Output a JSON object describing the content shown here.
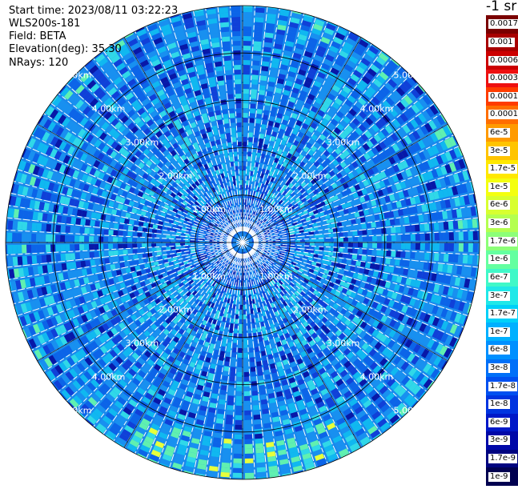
{
  "header": {
    "start_time": "Start time: 2023/08/11 03:22:23",
    "instrument": "WLS200s-181",
    "field": "Field: BETA",
    "elevation": "Elevation(deg): 35.30",
    "nrays": "NRays: 120"
  },
  "colorbar": {
    "unit_label": "-1 sr",
    "labels": [
      "0.0017",
      "0.001",
      "0.0006",
      "0.0003",
      "0.00017",
      "0.0001",
      "6e-5",
      "3e-5",
      "1.7e-5",
      "1e-5",
      "6e-6",
      "3e-6",
      "1.7e-6",
      "1e-6",
      "6e-7",
      "3e-7",
      "1.7e-7",
      "1e-7",
      "6e-8",
      "3e-8",
      "1.7e-8",
      "1e-8",
      "6e-9",
      "3e-9",
      "1.7e-9",
      "1e-9"
    ],
    "colors": [
      "#7a0000",
      "#a80000",
      "#cc0000",
      "#ee1010",
      "#ff3c00",
      "#ff6e00",
      "#ff9a00",
      "#ffc400",
      "#ffe800",
      "#f4ff10",
      "#d8ff30",
      "#b4ff50",
      "#8cff78",
      "#64ffa0",
      "#40f8c8",
      "#20e8e8",
      "#00d0f8",
      "#00b0ff",
      "#0090ff",
      "#0070f8",
      "#0050f0",
      "#0034e0",
      "#0018c8",
      "#0008a8",
      "#000480",
      "#000050"
    ]
  },
  "chart_data": {
    "type": "heatmap",
    "projection": "polar (plan position indicator)",
    "field": "BETA",
    "elevation_deg": 35.3,
    "n_rays": 120,
    "range_rings_km": [
      1.0,
      2.0,
      3.0,
      4.0,
      5.0
    ],
    "range_ring_labels": [
      "1.00km",
      "2.00km",
      "3.00km",
      "4.00km",
      "5.00km"
    ],
    "max_range_km": 5.0,
    "color_scale": "log",
    "color_range": [
      1e-09,
      0.0017
    ],
    "typical_value_range": [
      1e-08,
      3e-07
    ]
  }
}
